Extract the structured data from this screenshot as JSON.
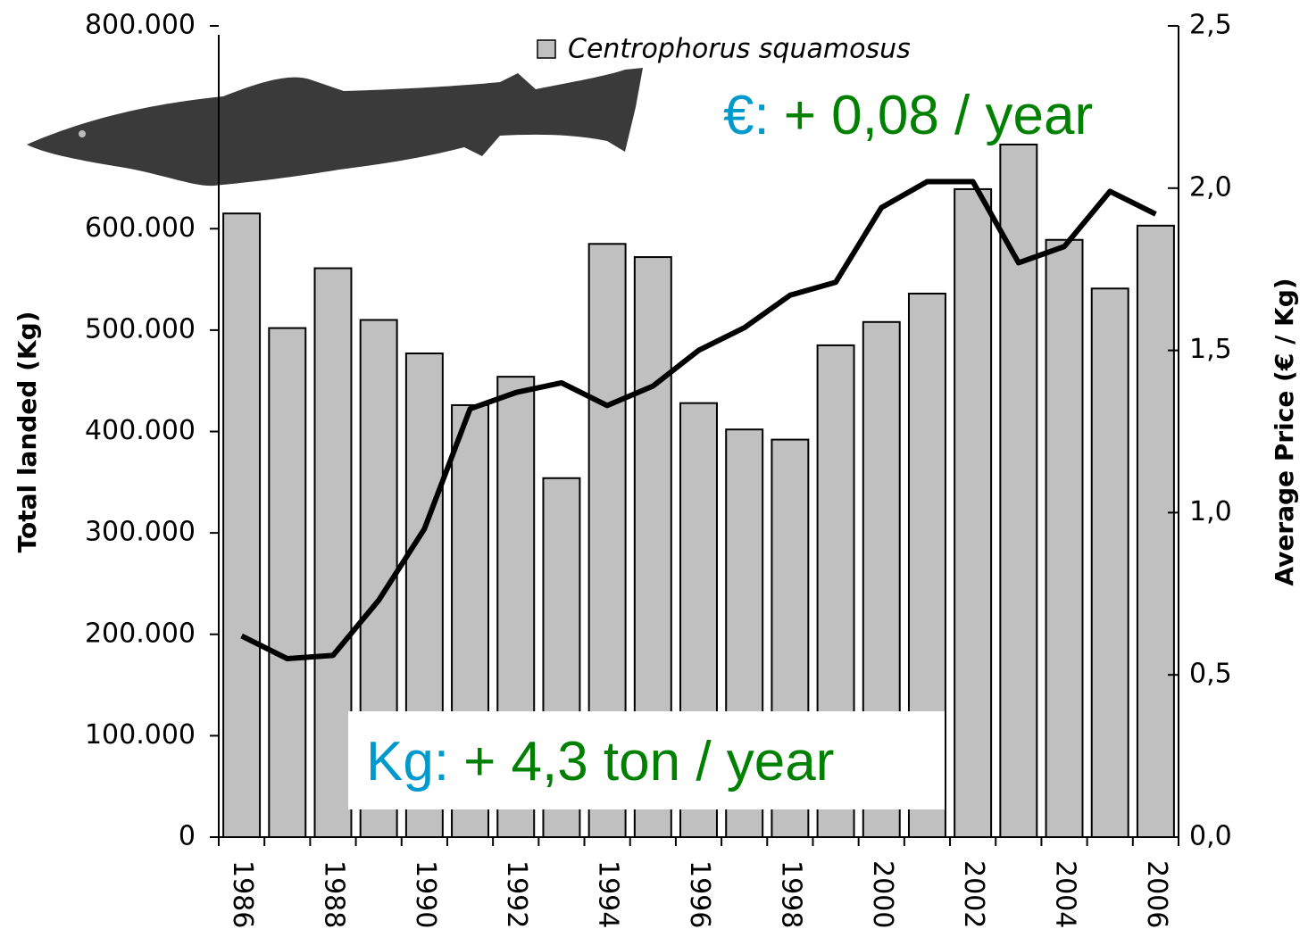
{
  "chart_data": {
    "type": "bar",
    "y_axis_label": "Total landed (Kg)",
    "y2_axis_label": "Average Price (€ / Kg)",
    "categories": [
      "1986",
      null,
      "1988",
      null,
      "1990",
      null,
      "1992",
      null,
      "1994",
      null,
      "1996",
      null,
      "1998",
      null,
      "2000",
      null,
      "2002",
      null,
      "2004",
      null,
      "2006"
    ],
    "series": [
      {
        "name": "Centrophorus squamosus",
        "type": "bar",
        "color": "#c0c0c0",
        "values": [
          615000,
          502000,
          561000,
          510000,
          477000,
          426000,
          454000,
          354000,
          585000,
          572000,
          428000,
          402000,
          392000,
          485000,
          508000,
          536000,
          639000,
          683000,
          589000,
          541000,
          603000
        ]
      },
      {
        "type": "line",
        "axis": "y2",
        "color": "#000000",
        "values": [
          0.62,
          0.55,
          0.56,
          0.73,
          0.95,
          1.32,
          1.37,
          1.4,
          1.33,
          1.39,
          1.5,
          1.57,
          1.67,
          1.71,
          1.94,
          2.02,
          2.02,
          1.77,
          1.82,
          1.99,
          1.92
        ]
      }
    ],
    "ylim": [
      0,
      800000
    ],
    "yticks": [
      {
        "value": 0,
        "label": "0"
      },
      {
        "value": 100000,
        "label": "100.000"
      },
      {
        "value": 200000,
        "label": "200.000"
      },
      {
        "value": 300000,
        "label": "300.000"
      },
      {
        "value": 400000,
        "label": "400.000"
      },
      {
        "value": 500000,
        "label": "500.000"
      },
      {
        "value": 600000,
        "label": "600.000"
      },
      {
        "value": 800000,
        "label": "800.000"
      }
    ],
    "y2lim": [
      0,
      2.5
    ],
    "y2ticks": [
      {
        "value": 0,
        "label": "0,0"
      },
      {
        "value": 0.5,
        "label": "0,5"
      },
      {
        "value": 1,
        "label": "1,0"
      },
      {
        "value": 1.5,
        "label": "1,5"
      },
      {
        "value": 2,
        "label": "2,0"
      },
      {
        "value": 2.5,
        "label": "2,5"
      }
    ],
    "annotations": [
      {
        "prefix": "€:",
        "text": "+ 0,08 / year",
        "prefix_color": "#0099cc",
        "color": "#008000"
      },
      {
        "prefix": "Kg:",
        "text": "+ 4,3 ton / year",
        "prefix_color": "#0099cc",
        "color": "#008000"
      }
    ]
  }
}
